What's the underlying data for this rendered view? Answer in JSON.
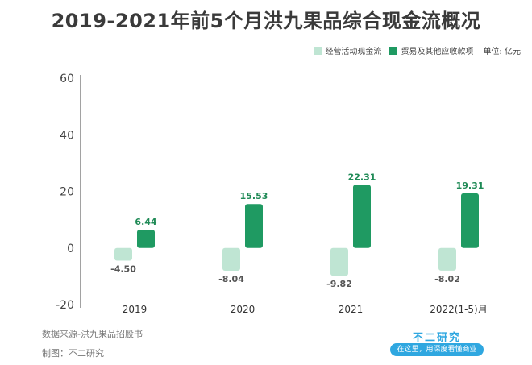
{
  "title": "2019-2021年前5个月洪九果品综合现金流概况",
  "legend": {
    "unit": "单位: 亿元"
  },
  "colors": {
    "series1": "#bfe5d3",
    "series2": "#1f9a62",
    "label1": "#555555",
    "label2": "#1f8a56",
    "axis": "#444444"
  },
  "footer": {
    "source": "数据来源-洪九果品招股书",
    "maker": "制图：不二研究",
    "brand": "不二研究",
    "slogan": "在这里，用深度看懂商业"
  },
  "chart_data": {
    "type": "bar",
    "categories": [
      "2019",
      "2020",
      "2021",
      "2022(1-5)月"
    ],
    "series": [
      {
        "name": "经营活动现金流",
        "values": [
          -4.5,
          -8.04,
          -9.82,
          -8.02
        ]
      },
      {
        "name": "贸易及其他应收款项",
        "values": [
          6.44,
          15.53,
          22.31,
          19.31
        ]
      }
    ],
    "yticks": [
      "60",
      "40",
      "20",
      "0",
      "-20"
    ],
    "ylim": [
      -20,
      60
    ],
    "xlabel": "",
    "ylabel": "",
    "grid": false,
    "legend_position": "top-right"
  }
}
